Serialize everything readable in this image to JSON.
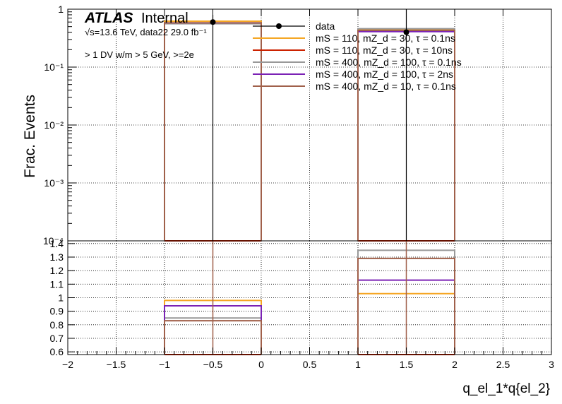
{
  "chart_data": {
    "type": "histogram",
    "title": "",
    "atlas_label": "ATLAS",
    "atlas_status": "Internal",
    "energy_label": "√s=13.6 TeV, data22 29.0 fb⁻¹",
    "selection_label": "> 1 DV w/m > 5 GeV, >=2e",
    "xlabel": "q_el_1*q{el_2}",
    "ylabel": "Frac. Events",
    "xlim": [
      -2,
      3
    ],
    "xticks": [
      "−2",
      "−1.5",
      "−1",
      "−0.5",
      "0",
      "0.5",
      "1",
      "1.5",
      "2",
      "2.5",
      "3"
    ],
    "top_panel": {
      "yscale": "log",
      "ylim": [
        0.0001,
        1
      ],
      "yticks": [
        "1",
        "10⁻¹",
        "10⁻²",
        "10⁻³",
        "10⁻⁴"
      ],
      "bins": [
        [
          -1,
          0
        ],
        [
          1,
          2
        ]
      ],
      "data": {
        "x": [
          -0.5,
          1.5
        ],
        "y": [
          0.6,
          0.4
        ],
        "y_err_hi": [
          0.8,
          1.0
        ],
        "y_err_lo": [
          0.0001,
          0.0001
        ]
      },
      "series": [
        {
          "name": "mS = 110, mZ_d = 30, τ = 0.1ns",
          "color": "#f5a623",
          "values": [
            0.62,
            0.44
          ]
        },
        {
          "name": "mS = 110, mZ_d = 30, τ = 10ns",
          "color": "#cc2200",
          "values": [
            0.0001,
            0.0001
          ]
        },
        {
          "name": "mS = 400, mZ_d = 100, τ = 0.1ns",
          "color": "#999999",
          "values": [
            0.56,
            0.46
          ]
        },
        {
          "name": "mS = 400, mZ_d = 100, τ = 2ns",
          "color": "#7b22b5",
          "values": [
            0.58,
            0.41
          ]
        },
        {
          "name": "mS = 400, mZ_d = 10, τ = 0.1ns",
          "color": "#a0604a",
          "values": [
            0.58,
            0.43
          ]
        }
      ],
      "legend_data_label": "data"
    },
    "ratio_panel": {
      "ylim": [
        0.58,
        1.42
      ],
      "yticks": [
        0.6,
        0.7,
        0.8,
        0.9,
        1,
        1.1,
        1.2,
        1.3,
        1.4
      ],
      "values": [
        {
          "name": "mS = 110, mZ_d = 30, τ = 0.1ns",
          "color": "#f5a623",
          "values": [
            0.98,
            1.03
          ]
        },
        {
          "name": "mS = 110, mZ_d = 30, τ = 10ns",
          "color": "#cc2200",
          "values": [
            0.0,
            0.0
          ]
        },
        {
          "name": "mS = 400, mZ_d = 100, τ = 0.1ns",
          "color": "#999999",
          "values": [
            0.85,
            1.35
          ]
        },
        {
          "name": "mS = 400, mZ_d = 100, τ = 2ns",
          "color": "#7b22b5",
          "values": [
            0.94,
            1.13
          ]
        },
        {
          "name": "mS = 400, mZ_d = 10, τ = 0.1ns",
          "color": "#a0604a",
          "values": [
            0.83,
            1.29
          ]
        }
      ],
      "data_line_x": [
        -0.5,
        1.5
      ]
    }
  }
}
